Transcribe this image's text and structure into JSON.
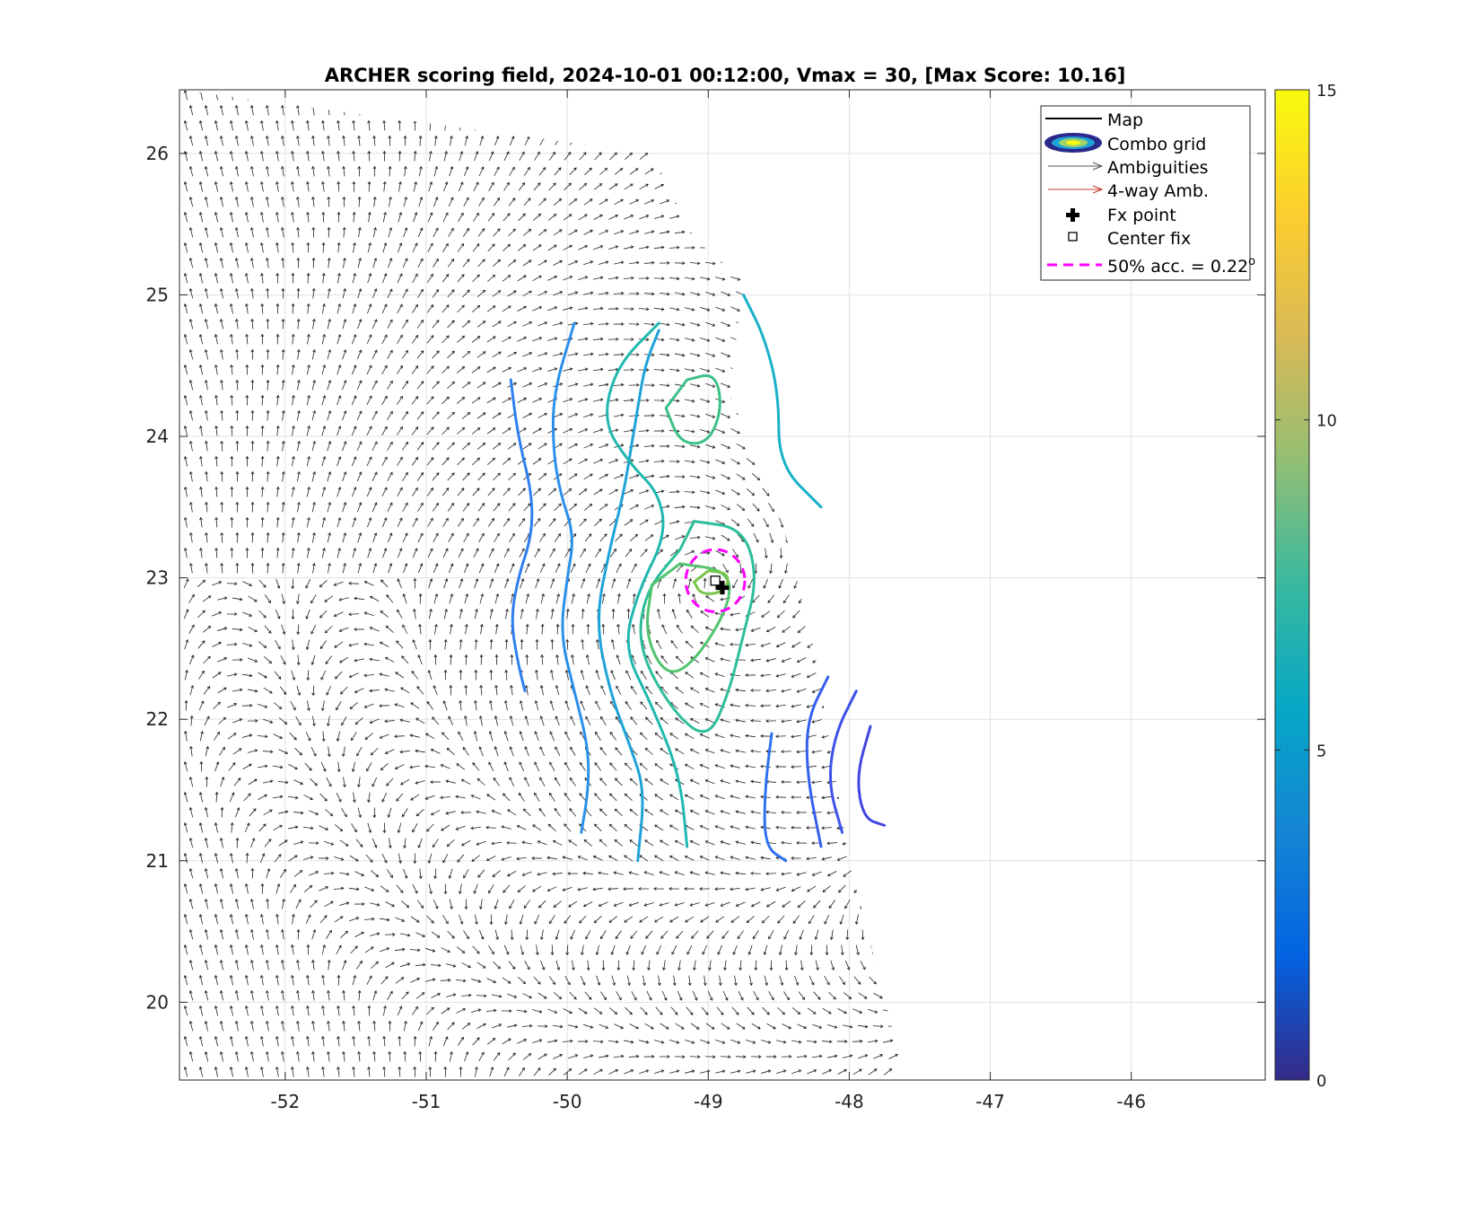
{
  "chart_data": {
    "type": "contour",
    "title": "ARCHER scoring field, 2024-10-01 00:12:00, Vmax = 30, [Max Score: 10.16]",
    "xlabel": "",
    "ylabel": "",
    "xlim": [
      -52.75,
      -45.05
    ],
    "ylim": [
      19.45,
      26.45
    ],
    "x_ticks": [
      -52,
      -51,
      -50,
      -49,
      -48,
      -47,
      -46
    ],
    "y_ticks": [
      20,
      21,
      22,
      23,
      24,
      25,
      26
    ],
    "grid": true,
    "colorbar": {
      "min": 0,
      "max": 15,
      "ticks": [
        0,
        5,
        10,
        15
      ],
      "colormap": "parula"
    },
    "legend": {
      "placement": "top-right",
      "entries": [
        {
          "label": "Map"
        },
        {
          "label": "Combo grid"
        },
        {
          "label": "Ambiguities"
        },
        {
          "label": "4-way Amb."
        },
        {
          "label": "Fx point"
        },
        {
          "label": "Center fix"
        },
        {
          "label": "50% acc. = 0.22",
          "superscript": "o"
        }
      ]
    },
    "max_score": 10.16,
    "center_fix": {
      "lon": -48.95,
      "lat": 22.98
    },
    "fx_point": {
      "lon": -48.9,
      "lat": 22.93
    },
    "accuracy_circle": {
      "lon": -48.95,
      "lat": 22.98,
      "radius_deg": 0.22
    },
    "swath_east_edge": [
      [
        -48.75,
        25.1
      ],
      [
        -48.85,
        24.3
      ],
      [
        -48.5,
        23.5
      ],
      [
        -48.25,
        22.5
      ],
      [
        -48.0,
        21.0
      ],
      [
        -47.6,
        19.45
      ]
    ],
    "swath_top_edge": [
      [
        -52.75,
        26.45
      ],
      [
        -49.4,
        26.0
      ],
      [
        -49.1,
        25.4
      ],
      [
        -48.75,
        25.1
      ]
    ],
    "contours": [
      {
        "level": 4.5,
        "color": "#2f7ff0",
        "points": [
          [
            -50.4,
            24.4
          ],
          [
            -50.35,
            24.0
          ],
          [
            -50.25,
            23.6
          ],
          [
            -50.25,
            23.3
          ],
          [
            -50.35,
            23.0
          ],
          [
            -50.4,
            22.7
          ],
          [
            -50.35,
            22.4
          ],
          [
            -50.3,
            22.2
          ]
        ]
      },
      {
        "level": 5.5,
        "color": "#2a90ea",
        "points": [
          [
            -49.95,
            24.8
          ],
          [
            -50.1,
            24.3
          ],
          [
            -50.1,
            23.9
          ],
          [
            -50.05,
            23.6
          ],
          [
            -49.95,
            23.3
          ],
          [
            -50.0,
            23.0
          ],
          [
            -50.05,
            22.6
          ],
          [
            -49.95,
            22.2
          ],
          [
            -49.85,
            21.8
          ],
          [
            -49.85,
            21.5
          ],
          [
            -49.9,
            21.2
          ]
        ]
      },
      {
        "level": 6.5,
        "color": "#1ea3d8",
        "points": [
          [
            -49.35,
            24.75
          ],
          [
            -49.45,
            24.5
          ],
          [
            -49.5,
            24.2
          ],
          [
            -49.55,
            23.9
          ],
          [
            -49.6,
            23.6
          ],
          [
            -49.7,
            23.2
          ],
          [
            -49.8,
            22.7
          ],
          [
            -49.7,
            22.2
          ],
          [
            -49.55,
            21.8
          ],
          [
            -49.45,
            21.5
          ],
          [
            -49.5,
            21.0
          ]
        ]
      },
      {
        "level": 7.0,
        "color": "#18b0c8",
        "points": [
          [
            -48.75,
            25.0
          ],
          [
            -48.6,
            24.7
          ],
          [
            -48.5,
            24.3
          ],
          [
            -48.5,
            23.8
          ],
          [
            -48.2,
            23.5
          ]
        ]
      },
      {
        "level": 7.5,
        "color": "#20b8b0",
        "points": [
          [
            -49.35,
            24.8
          ],
          [
            -49.65,
            24.5
          ],
          [
            -49.75,
            24.1
          ],
          [
            -49.55,
            23.8
          ],
          [
            -49.35,
            23.6
          ],
          [
            -49.3,
            23.3
          ],
          [
            -49.5,
            22.9
          ],
          [
            -49.6,
            22.5
          ],
          [
            -49.4,
            22.1
          ],
          [
            -49.2,
            21.6
          ],
          [
            -49.15,
            21.1
          ]
        ]
      },
      {
        "level": 8.0,
        "color": "#2ebe9a",
        "points": [
          [
            -49.1,
            23.4
          ],
          [
            -48.75,
            23.35
          ],
          [
            -48.65,
            23.0
          ],
          [
            -48.75,
            22.6
          ],
          [
            -48.85,
            22.2
          ],
          [
            -49.0,
            21.85
          ],
          [
            -49.25,
            22.05
          ],
          [
            -49.5,
            22.5
          ],
          [
            -49.45,
            22.9
          ],
          [
            -49.2,
            23.2
          ]
        ],
        "closed": true
      },
      {
        "level": 8.5,
        "color": "#3cc088",
        "points": [
          [
            -49.15,
            24.4
          ],
          [
            -48.95,
            24.45
          ],
          [
            -48.9,
            24.2
          ],
          [
            -49.0,
            23.95
          ],
          [
            -49.2,
            23.95
          ],
          [
            -49.3,
            24.2
          ]
        ],
        "closed": true
      },
      {
        "level": 9.0,
        "color": "#52c46e",
        "points": [
          [
            -49.2,
            23.1
          ],
          [
            -48.85,
            23.05
          ],
          [
            -48.85,
            22.8
          ],
          [
            -49.1,
            22.4
          ],
          [
            -49.3,
            22.3
          ],
          [
            -49.45,
            22.6
          ],
          [
            -49.4,
            22.95
          ]
        ],
        "closed": true
      },
      {
        "level": 9.5,
        "color": "#78c44a",
        "points": [
          [
            -49.0,
            23.05
          ],
          [
            -48.85,
            23.03
          ],
          [
            -48.88,
            22.9
          ],
          [
            -49.05,
            22.88
          ],
          [
            -49.1,
            22.97
          ]
        ],
        "closed": true
      },
      {
        "level": 6.0,
        "color": "#2e72f0",
        "points": [
          [
            -48.55,
            21.9
          ],
          [
            -48.6,
            21.5
          ],
          [
            -48.6,
            21.1
          ],
          [
            -48.45,
            21.0
          ]
        ]
      },
      {
        "level": 5.0,
        "color": "#3560ee",
        "points": [
          [
            -48.15,
            22.3
          ],
          [
            -48.3,
            22.0
          ],
          [
            -48.3,
            21.6
          ],
          [
            -48.2,
            21.1
          ]
        ]
      },
      {
        "level": 4.0,
        "color": "#3d52ea",
        "points": [
          [
            -47.95,
            22.2
          ],
          [
            -48.1,
            21.9
          ],
          [
            -48.15,
            21.55
          ],
          [
            -48.05,
            21.2
          ]
        ]
      },
      {
        "level": 3.0,
        "color": "#4246e0",
        "points": [
          [
            -47.85,
            21.95
          ],
          [
            -47.95,
            21.6
          ],
          [
            -47.9,
            21.3
          ],
          [
            -47.75,
            21.25
          ]
        ]
      }
    ]
  }
}
